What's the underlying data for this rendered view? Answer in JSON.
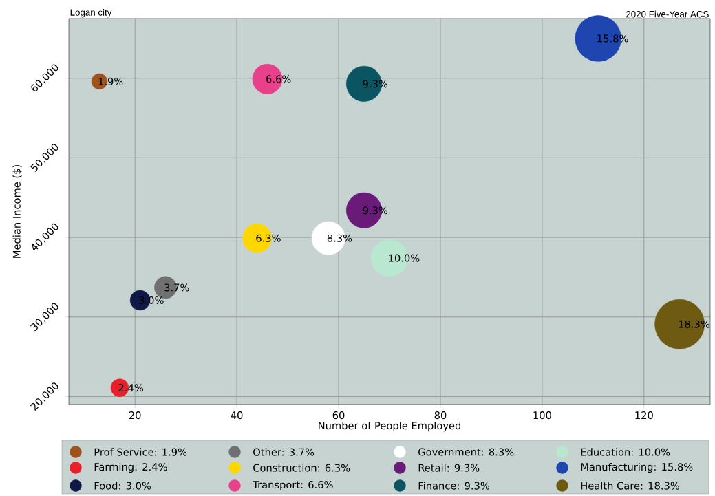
{
  "chart_data": {
    "type": "bubble",
    "title": "Logan city",
    "subtitle": "2020 Five-Year ACS",
    "xlabel": "Number of People Employed",
    "ylabel": "Median Income ($)",
    "xlim": [
      7,
      133
    ],
    "ylim": [
      19000,
      67500
    ],
    "xticks": [
      20,
      40,
      60,
      80,
      100,
      120
    ],
    "yticks": [
      {
        "value": 20000,
        "label": "20,000"
      },
      {
        "value": 30000,
        "label": "30,000"
      },
      {
        "value": 40000,
        "label": "40,000"
      },
      {
        "value": 50000,
        "label": "50,000"
      },
      {
        "value": 60000,
        "label": "60,000"
      }
    ],
    "grid": true,
    "legend": "bottom",
    "series": [
      {
        "name": "Prof Service: 1.9%",
        "color": "#a0521d",
        "x": [
          13
        ],
        "values": [
          59600
        ],
        "sizes": [
          0.1
        ]
      },
      {
        "name": "Farming: 2.4%",
        "color": "#e8202a",
        "x": [
          17
        ],
        "values": [
          21100
        ],
        "sizes": [
          0.13
        ]
      },
      {
        "name": "Food: 3.0%",
        "color": "#101848",
        "x": [
          21
        ],
        "values": [
          32100
        ],
        "sizes": [
          0.16
        ]
      },
      {
        "name": "Other: 3.7%",
        "color": "#707070",
        "x": [
          26
        ],
        "values": [
          33700
        ],
        "sizes": [
          0.2
        ]
      },
      {
        "name": "Construction: 6.3%",
        "color": "#ffd700",
        "x": [
          44
        ],
        "values": [
          39900
        ],
        "sizes": [
          0.34
        ]
      },
      {
        "name": "Transport: 6.6%",
        "color": "#e8408a",
        "x": [
          46
        ],
        "values": [
          59900
        ],
        "sizes": [
          0.36
        ]
      },
      {
        "name": "Government: 8.3%",
        "color": "#ffffff",
        "x": [
          58
        ],
        "values": [
          39900
        ],
        "sizes": [
          0.45
        ]
      },
      {
        "name": "Retail: 9.3%",
        "color": "#6a1b7a",
        "x": [
          65
        ],
        "values": [
          43400
        ],
        "sizes": [
          0.51
        ]
      },
      {
        "name": "Finance: 9.3%",
        "color": "#0b5563",
        "x": [
          65
        ],
        "values": [
          59300
        ],
        "sizes": [
          0.51
        ]
      },
      {
        "name": "Education: 10.0%",
        "color": "#b8e8d0",
        "x": [
          70
        ],
        "values": [
          37400
        ],
        "sizes": [
          0.55
        ]
      },
      {
        "name": "Manufacturing: 15.8%",
        "color": "#1e45b0",
        "x": [
          111
        ],
        "values": [
          65000
        ],
        "sizes": [
          0.86
        ]
      },
      {
        "name": "Health Care: 18.3%",
        "color": "#6e5a10",
        "x": [
          127
        ],
        "values": [
          29100
        ],
        "sizes": [
          1
        ]
      }
    ],
    "annotations": [
      {
        "text": "1.9%",
        "x": 13,
        "y": 59600
      },
      {
        "text": "2.4%",
        "x": 17,
        "y": 21100
      },
      {
        "text": "3.0%",
        "x": 21,
        "y": 32100
      },
      {
        "text": "3.7%",
        "x": 26,
        "y": 33700
      },
      {
        "text": "6.3%",
        "x": 44,
        "y": 39900
      },
      {
        "text": "6.6%",
        "x": 46,
        "y": 59900
      },
      {
        "text": "8.3%",
        "x": 58,
        "y": 39900
      },
      {
        "text": "9.3%",
        "x": 65,
        "y": 43400
      },
      {
        "text": "9.3%",
        "x": 65,
        "y": 59300
      },
      {
        "text": "10.0%",
        "x": 70,
        "y": 37400
      },
      {
        "text": "15.8%",
        "x": 111,
        "y": 65000
      },
      {
        "text": "18.3%",
        "x": 127,
        "y": 29100
      }
    ]
  }
}
